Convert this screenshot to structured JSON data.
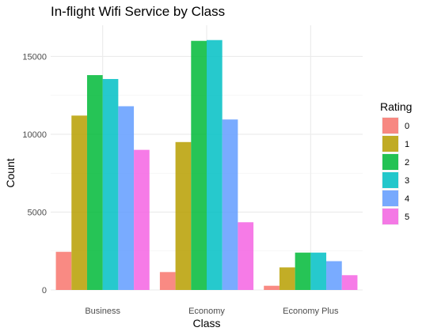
{
  "chart_data": {
    "type": "bar",
    "title": "In-flight Wifi Service by Class",
    "xlabel": "Class",
    "ylabel": "Count",
    "categories": [
      "Business",
      "Economy",
      "Economy Plus"
    ],
    "ylim": [
      0,
      17000
    ],
    "yticks": [
      0,
      5000,
      10000,
      15000
    ],
    "ytick_labels": [
      "0",
      "5000",
      "10000",
      "15000"
    ],
    "grid": true,
    "legend_title": "Rating",
    "legend_position": "right",
    "series": [
      {
        "name": "0",
        "color": "#F8766D",
        "values": [
          2450,
          1150,
          270
        ]
      },
      {
        "name": "1",
        "color": "#B79F00",
        "values": [
          11200,
          9500,
          1450
        ]
      },
      {
        "name": "2",
        "color": "#00BA38",
        "values": [
          13800,
          16000,
          2400
        ]
      },
      {
        "name": "3",
        "color": "#00BFC4",
        "values": [
          13550,
          16050,
          2400
        ]
      },
      {
        "name": "4",
        "color": "#619CFF",
        "values": [
          11800,
          10950,
          1850
        ]
      },
      {
        "name": "5",
        "color": "#F564E3",
        "values": [
          9000,
          4350,
          950
        ]
      }
    ]
  }
}
